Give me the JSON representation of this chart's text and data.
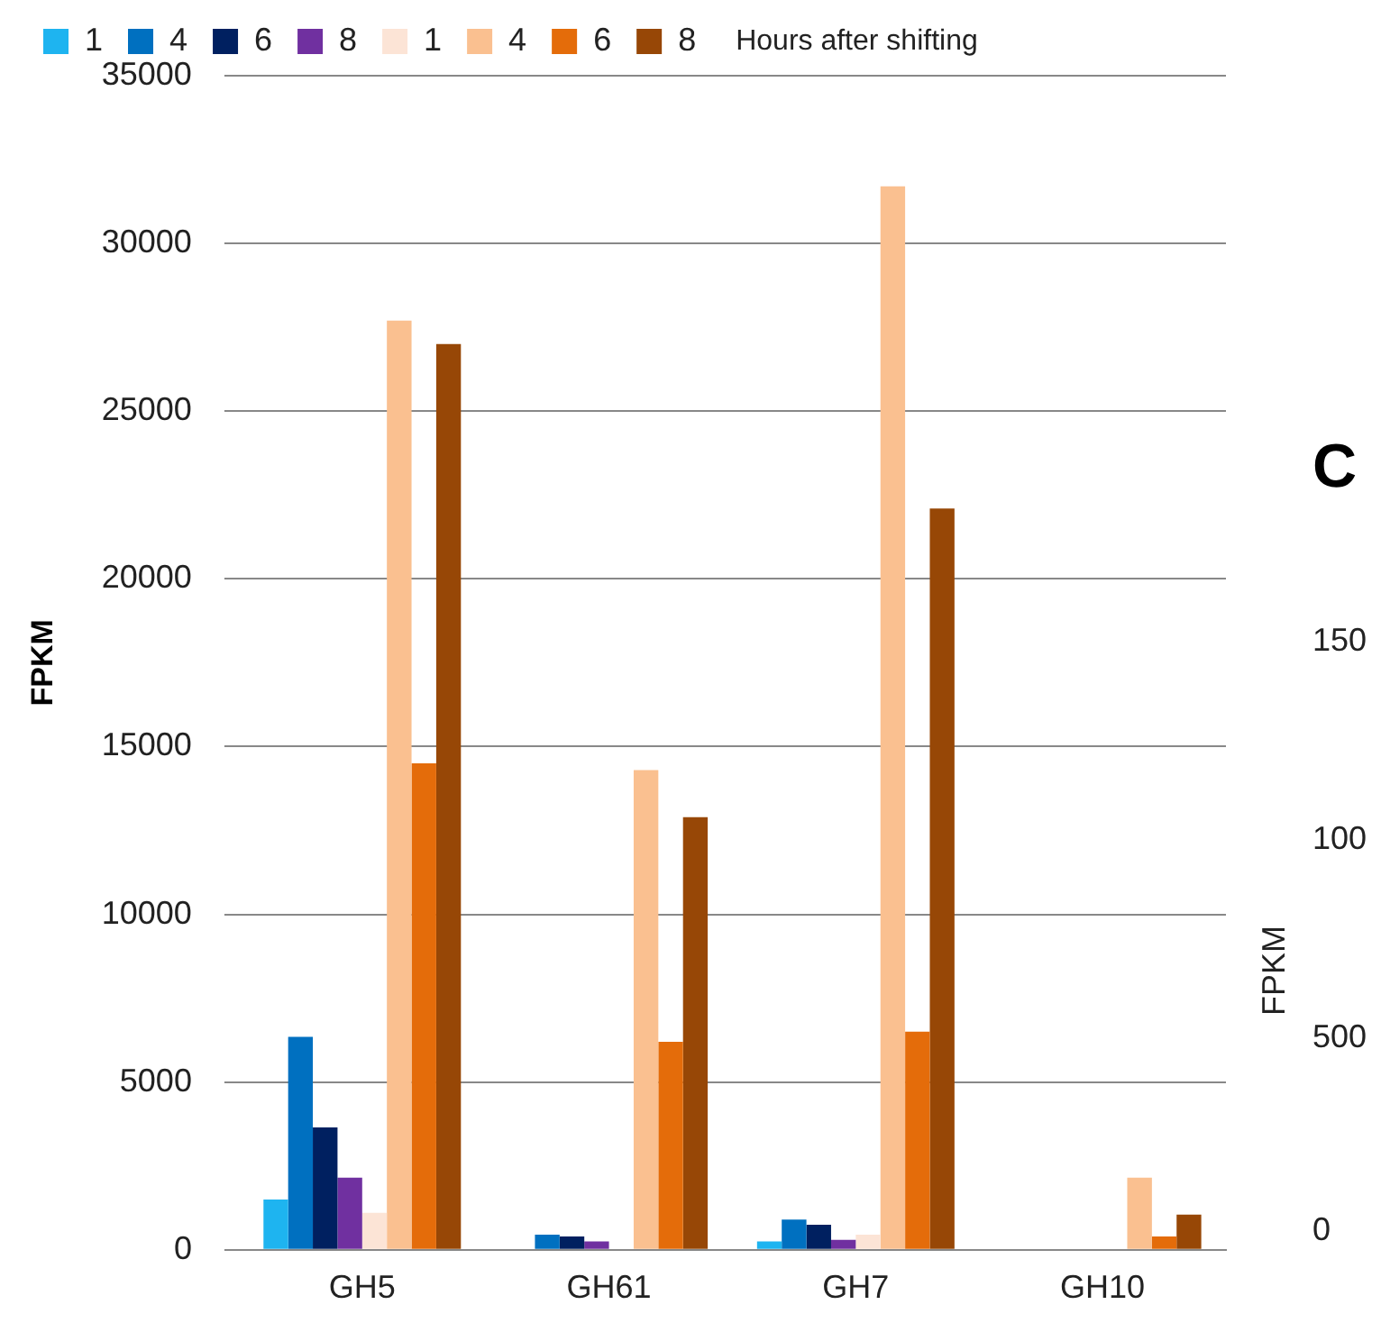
{
  "chart_data": [
    {
      "type": "bar",
      "ylabel": "FPKM",
      "legend_title": "Hours after shifting",
      "categories": [
        "GH5",
        "GH61",
        "GH7",
        "GH10"
      ],
      "series": [
        {
          "name": "1",
          "color": "#1eb4f0",
          "values": [
            1500,
            0,
            250,
            0
          ]
        },
        {
          "name": "4",
          "color": "#0070c0",
          "values": [
            6350,
            450,
            900,
            0
          ]
        },
        {
          "name": "6",
          "color": "#002060",
          "values": [
            3650,
            400,
            750,
            0
          ]
        },
        {
          "name": "8",
          "color": "#7030a0",
          "values": [
            2150,
            250,
            300,
            0
          ]
        },
        {
          "name": "1",
          "color": "#fce4d6",
          "values": [
            1100,
            0,
            450,
            0
          ]
        },
        {
          "name": "4",
          "color": "#fac090",
          "values": [
            27700,
            14300,
            31700,
            2150
          ]
        },
        {
          "name": "6",
          "color": "#e46c0a",
          "values": [
            14500,
            6200,
            6500,
            400
          ]
        },
        {
          "name": "8",
          "color": "#974706",
          "values": [
            27000,
            12900,
            22100,
            1050
          ]
        }
      ],
      "ylim": [
        0,
        35000
      ],
      "yticks": [
        0,
        5000,
        10000,
        15000,
        20000,
        25000,
        30000,
        35000
      ],
      "grid": "y",
      "legend": "top"
    },
    {
      "type": "other",
      "title": "C",
      "ylabel": "FPKM",
      "annotations": [
        "150",
        "100",
        "500",
        "0"
      ]
    }
  ]
}
